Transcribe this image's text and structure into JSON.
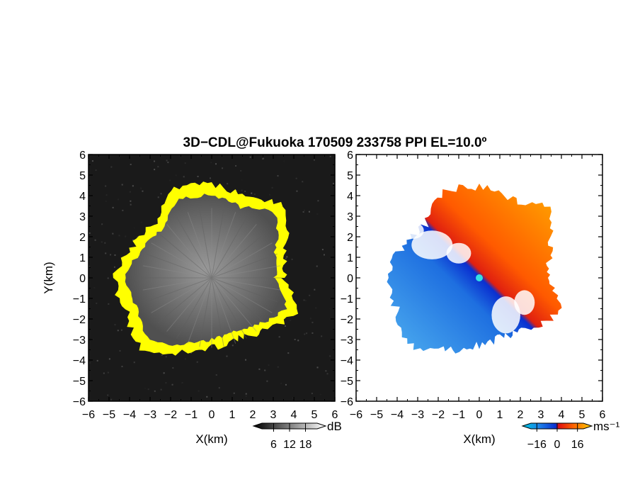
{
  "title": "3D−CDL@Fukuoka 170509 233758 PPI EL=10.0º",
  "chart_data": [
    {
      "type": "heatmap",
      "name": "reflectivity-ppi",
      "xlabel": "X(km)",
      "ylabel": "Y(km)",
      "xlim": [
        -6,
        6
      ],
      "ylim": [
        -6,
        6
      ],
      "xticks": [
        "−6",
        "−5",
        "−4",
        "−3",
        "−2",
        "−1",
        "0",
        "1",
        "2",
        "3",
        "4",
        "5",
        "6"
      ],
      "yticks": [
        "6",
        "5",
        "4",
        "3",
        "2",
        "1",
        "0",
        "−1",
        "−2",
        "−3",
        "−4",
        "−5",
        "−6"
      ],
      "background": "#1a1a1a",
      "colormap": "gray",
      "echo_color": "#ffff00",
      "colorbar": {
        "unit": "dB",
        "ticks": [
          "6",
          "12",
          "18"
        ],
        "range": [
          0,
          24
        ]
      },
      "echo_boundary_radius_km": [
        3.3,
        3.6,
        4.7,
        4.0,
        4.3,
        4.4,
        3.6,
        3.9,
        4.5,
        4.2,
        4.6,
        3.7,
        3.2,
        3.0,
        3.4,
        4.2
      ],
      "grid": false
    },
    {
      "type": "heatmap",
      "name": "doppler-velocity-ppi",
      "xlabel": "X(km)",
      "ylabel": "",
      "xlim": [
        -6,
        6
      ],
      "ylim": [
        -6,
        6
      ],
      "xticks": [
        "−6",
        "−5",
        "−4",
        "−3",
        "−2",
        "−1",
        "0",
        "1",
        "2",
        "3",
        "4",
        "5",
        "6"
      ],
      "yticks": [
        "6",
        "5",
        "4",
        "3",
        "2",
        "1",
        "0",
        "−1",
        "−2",
        "−3",
        "−4",
        "−5",
        "−6"
      ],
      "background": "#ffffff",
      "colormap": "blue-red diverging",
      "colorbar": {
        "unit": "ms⁻¹",
        "ticks": [
          "−16",
          "0",
          "16"
        ],
        "range": [
          -24,
          24
        ]
      },
      "positive_color": "#ff6a00",
      "negative_color": "#1e7fe8",
      "center_marker_color": "#33e0e6",
      "grid": false
    }
  ]
}
